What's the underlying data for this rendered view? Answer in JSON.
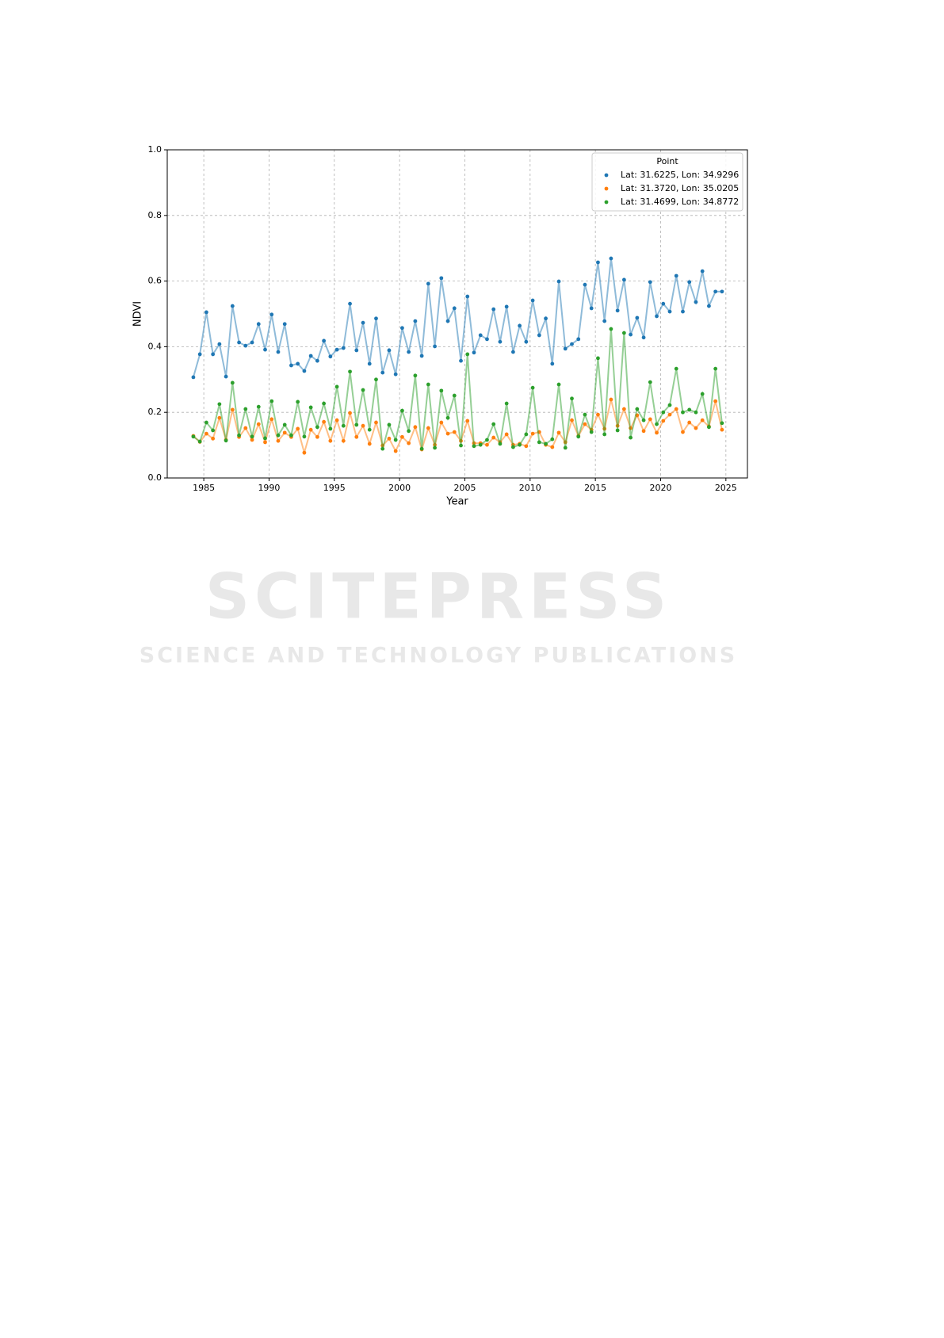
{
  "chart_data": {
    "type": "line",
    "x_label": "Year",
    "y_label": "NDVI",
    "legend_title": "Point",
    "legend_position": "upper right",
    "grid": true,
    "xlim": [
      1982.2,
      2026.65
    ],
    "ylim": [
      0,
      1
    ],
    "xticks": [
      1985,
      1990,
      1995,
      2000,
      2005,
      2010,
      2015,
      2020,
      2025
    ],
    "yticks": [
      {
        "value": 0,
        "label": "0.0"
      },
      {
        "value": 0.2,
        "label": "0.2"
      },
      {
        "value": 0.4,
        "label": "0.4"
      },
      {
        "value": 0.6,
        "label": "0.6"
      },
      {
        "value": 0.8,
        "label": "0.8"
      },
      {
        "value": 1,
        "label": "1.0"
      }
    ],
    "x": [
      1984.2,
      1984.7,
      1985.2,
      1985.7,
      1986.2,
      1986.7,
      1987.2,
      1987.7,
      1988.2,
      1988.7,
      1989.2,
      1989.7,
      1990.2,
      1990.7,
      1991.2,
      1991.7,
      1992.2,
      1992.7,
      1993.2,
      1993.7,
      1994.2,
      1994.7,
      1995.2,
      1995.7,
      1996.2,
      1996.7,
      1997.2,
      1997.7,
      1998.2,
      1998.7,
      1999.2,
      1999.7,
      2000.2,
      2000.7,
      2001.2,
      2001.7,
      2002.2,
      2002.7,
      2003.2,
      2003.7,
      2004.2,
      2004.7,
      2005.2,
      2005.7,
      2006.2,
      2006.7,
      2007.2,
      2007.7,
      2008.2,
      2008.7,
      2009.2,
      2009.7,
      2010.2,
      2010.7,
      2011.2,
      2011.7,
      2012.2,
      2012.7,
      2013.2,
      2013.7,
      2014.2,
      2014.7,
      2015.2,
      2015.7,
      2016.2,
      2016.7,
      2017.2,
      2017.7,
      2018.2,
      2018.7,
      2019.2,
      2019.7,
      2020.2,
      2020.7,
      2021.2,
      2021.7,
      2022.2,
      2022.7,
      2023.2,
      2023.7,
      2024.2,
      2024.7
    ],
    "series": [
      {
        "name": "Lat: 31.6225, Lon: 34.9296",
        "color": "#1f77b4",
        "values": [
          0.307,
          0.377,
          0.505,
          0.377,
          0.408,
          0.309,
          0.524,
          0.413,
          0.403,
          0.413,
          0.469,
          0.391,
          0.498,
          0.384,
          0.469,
          0.343,
          0.348,
          0.326,
          0.372,
          0.357,
          0.418,
          0.37,
          0.391,
          0.396,
          0.531,
          0.389,
          0.473,
          0.348,
          0.486,
          0.321,
          0.389,
          0.316,
          0.457,
          0.384,
          0.478,
          0.372,
          0.592,
          0.401,
          0.609,
          0.478,
          0.517,
          0.357,
          0.553,
          0.382,
          0.435,
          0.423,
          0.514,
          0.415,
          0.522,
          0.384,
          0.464,
          0.415,
          0.541,
          0.435,
          0.486,
          0.348,
          0.599,
          0.394,
          0.408,
          0.423,
          0.589,
          0.517,
          0.657,
          0.478,
          0.669,
          0.51,
          0.604,
          0.437,
          0.488,
          0.428,
          0.597,
          0.493,
          0.531,
          0.507,
          0.616,
          0.507,
          0.597,
          0.536,
          0.63,
          0.524,
          0.568,
          0.568
        ]
      },
      {
        "name": "Lat: 31.3720, Lon: 35.0205",
        "color": "#ff7f0e",
        "values": [
          0.128,
          0.11,
          0.135,
          0.12,
          0.183,
          0.116,
          0.208,
          0.125,
          0.152,
          0.116,
          0.164,
          0.109,
          0.179,
          0.113,
          0.138,
          0.125,
          0.15,
          0.077,
          0.147,
          0.125,
          0.171,
          0.113,
          0.176,
          0.113,
          0.198,
          0.125,
          0.159,
          0.104,
          0.169,
          0.099,
          0.12,
          0.082,
          0.125,
          0.106,
          0.155,
          0.087,
          0.152,
          0.101,
          0.169,
          0.135,
          0.14,
          0.113,
          0.174,
          0.106,
          0.106,
          0.101,
          0.123,
          0.109,
          0.133,
          0.101,
          0.104,
          0.097,
          0.135,
          0.14,
          0.101,
          0.094,
          0.138,
          0.109,
          0.176,
          0.128,
          0.164,
          0.147,
          0.193,
          0.15,
          0.239,
          0.159,
          0.21,
          0.152,
          0.191,
          0.143,
          0.179,
          0.138,
          0.174,
          0.193,
          0.21,
          0.14,
          0.169,
          0.152,
          0.176,
          0.157,
          0.234,
          0.147
        ]
      },
      {
        "name": "Lat: 31.4699, Lon: 34.8772",
        "color": "#2ca02c",
        "values": [
          0.126,
          0.111,
          0.169,
          0.145,
          0.225,
          0.114,
          0.29,
          0.13,
          0.21,
          0.126,
          0.217,
          0.121,
          0.234,
          0.13,
          0.162,
          0.13,
          0.232,
          0.126,
          0.215,
          0.155,
          0.227,
          0.15,
          0.278,
          0.159,
          0.324,
          0.162,
          0.268,
          0.147,
          0.3,
          0.089,
          0.162,
          0.116,
          0.205,
          0.143,
          0.312,
          0.089,
          0.285,
          0.092,
          0.266,
          0.183,
          0.251,
          0.099,
          0.377,
          0.097,
          0.101,
          0.116,
          0.164,
          0.104,
          0.227,
          0.094,
          0.101,
          0.133,
          0.275,
          0.109,
          0.104,
          0.118,
          0.285,
          0.092,
          0.242,
          0.126,
          0.193,
          0.14,
          0.365,
          0.133,
          0.454,
          0.145,
          0.442,
          0.123,
          0.21,
          0.176,
          0.292,
          0.164,
          0.2,
          0.222,
          0.333,
          0.2,
          0.208,
          0.2,
          0.256,
          0.155,
          0.333,
          0.167
        ]
      }
    ]
  },
  "watermark": {
    "title": "SCITEPRESS",
    "subtitle": "SCIENCE AND TECHNOLOGY PUBLICATIONS"
  }
}
